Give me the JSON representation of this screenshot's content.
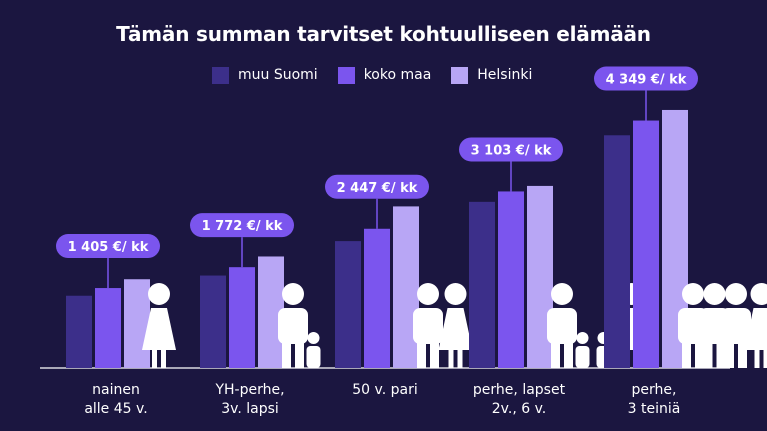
{
  "chart_data": {
    "type": "bar",
    "title": "Tämän summan tarvitset kohtuulliseen elämään",
    "xlabel": "",
    "ylabel": "",
    "ylim": [
      0,
      5000
    ],
    "categories": [
      [
        "nainen",
        "alle 45 v."
      ],
      [
        "YH-perhe,",
        "3v. lapsi"
      ],
      [
        "50 v. pari"
      ],
      [
        "perhe, lapset",
        "2v., 6 v."
      ],
      [
        "perhe,",
        "3 teiniä"
      ]
    ],
    "series": [
      {
        "name": "muu Suomi",
        "color": "#3c2f8a",
        "values": [
          1270,
          1625,
          2230,
          2920,
          4090
        ]
      },
      {
        "name": "koko maa",
        "color": "#7b55ee",
        "values": [
          1405,
          1772,
          2447,
          3103,
          4349
        ]
      },
      {
        "name": "Helsinki",
        "color": "#b8a6f5",
        "values": [
          1560,
          1960,
          2840,
          3200,
          4535
        ]
      }
    ],
    "callouts": [
      "1 405 €/ kk",
      "1 772 €/ kk",
      "2 447 €/ kk",
      "3 103 €/ kk",
      "4 349 €/ kk"
    ],
    "grid": false,
    "legend_position": "top-center",
    "figures": [
      [
        {
          "kind": "woman"
        }
      ],
      [
        {
          "kind": "man"
        },
        {
          "kind": "child"
        }
      ],
      [
        {
          "kind": "man"
        },
        {
          "kind": "woman"
        }
      ],
      [
        {
          "kind": "man"
        },
        {
          "kind": "child"
        },
        {
          "kind": "child"
        },
        {
          "kind": "woman"
        }
      ],
      [
        {
          "kind": "teen"
        },
        {
          "kind": "teen"
        },
        {
          "kind": "teen"
        },
        {
          "kind": "woman"
        }
      ]
    ]
  }
}
